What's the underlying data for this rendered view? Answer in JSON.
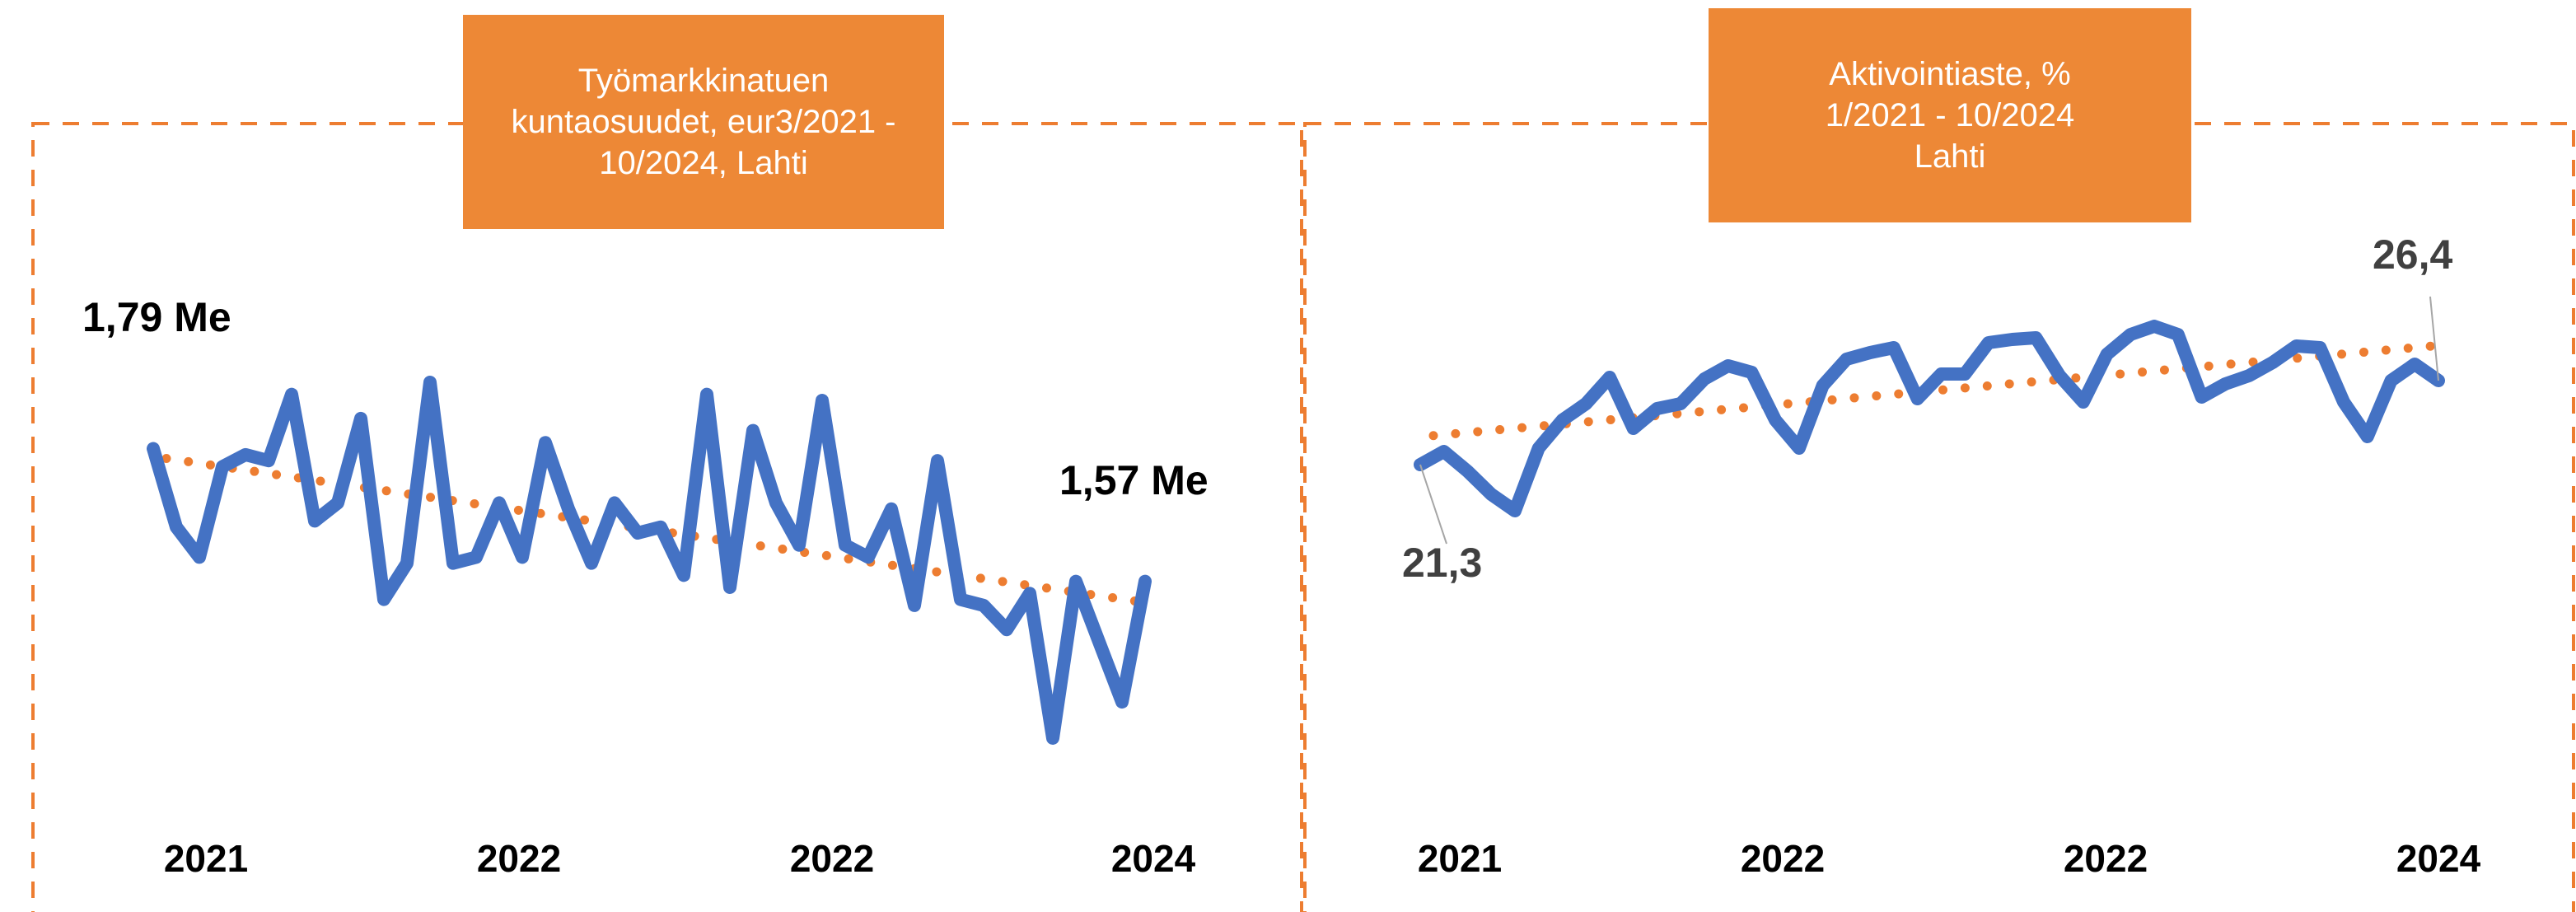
{
  "chart_data": [
    {
      "type": "line",
      "title": "Työmarkkinatuen kuntaosuudet, eur3/2021 - 10/2024, Lahti",
      "xtick_labels": [
        "2021",
        "2022",
        "2022",
        "2024"
      ],
      "series": [
        {
          "color": "#4472c4",
          "values": [
            1.79,
            1.66,
            1.61,
            1.76,
            1.78,
            1.77,
            1.88,
            1.67,
            1.7,
            1.84,
            1.54,
            1.6,
            1.9,
            1.6,
            1.61,
            1.7,
            1.61,
            1.8,
            1.69,
            1.6,
            1.7,
            1.65,
            1.66,
            1.58,
            1.88,
            1.56,
            1.82,
            1.7,
            1.63,
            1.87,
            1.63,
            1.61,
            1.69,
            1.53,
            1.77,
            1.54,
            1.53,
            1.49,
            1.55,
            1.31,
            1.57,
            1.47,
            1.37,
            1.57
          ],
          "value_labels": [
            "1,79 Me",
            null,
            null,
            null,
            null,
            null,
            null,
            null,
            null,
            null,
            null,
            null,
            null,
            null,
            null,
            null,
            null,
            null,
            null,
            null,
            null,
            null,
            null,
            null,
            null,
            null,
            null,
            null,
            null,
            null,
            null,
            null,
            null,
            null,
            null,
            null,
            null,
            null,
            null,
            null,
            null,
            null,
            null,
            "1,57 Me"
          ]
        }
      ],
      "trend_color": "#ed7d31"
    },
    {
      "type": "line",
      "title": "Aktivointiaste, % 1/2021 - 10/2024 Lahti",
      "xtick_labels": [
        "2021",
        "2022",
        "2022",
        "2024"
      ],
      "series": [
        {
          "color": "#4472c4",
          "values": [
            21.3,
            22.1,
            20.9,
            19.5,
            18.5,
            22.3,
            24.0,
            25.0,
            26.6,
            23.5,
            24.7,
            25.0,
            26.5,
            27.3,
            26.9,
            24.0,
            22.3,
            26.1,
            27.7,
            28.1,
            28.4,
            25.3,
            26.8,
            26.8,
            28.7,
            28.9,
            29.0,
            26.7,
            25.1,
            28.0,
            29.2,
            29.7,
            29.2,
            25.4,
            26.2,
            26.7,
            27.5,
            28.5,
            28.4,
            25.1,
            23.0,
            26.4,
            27.4,
            26.4
          ],
          "value_labels": [
            "21,3",
            null,
            null,
            null,
            null,
            null,
            null,
            null,
            null,
            null,
            null,
            null,
            null,
            null,
            null,
            null,
            null,
            null,
            null,
            null,
            null,
            null,
            null,
            null,
            null,
            null,
            null,
            null,
            null,
            null,
            null,
            null,
            null,
            null,
            null,
            null,
            null,
            null,
            null,
            null,
            null,
            null,
            null,
            "26,4"
          ]
        }
      ],
      "trend_color": "#ed7d31"
    }
  ]
}
